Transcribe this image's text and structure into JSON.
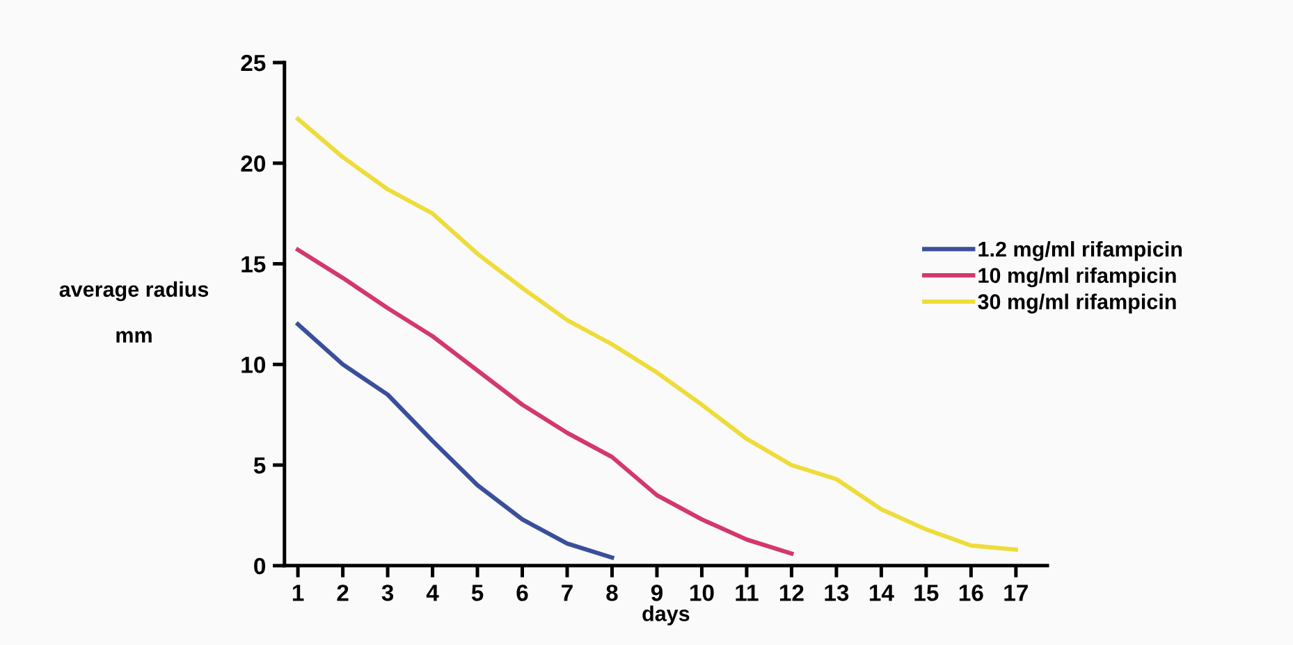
{
  "chart_data": {
    "type": "line",
    "xlabel": "days",
    "ylabel": "average radius\n\nmm",
    "categories": [
      "1",
      "2",
      "3",
      "4",
      "5",
      "6",
      "7",
      "8",
      "9",
      "10",
      "11",
      "12",
      "13",
      "14",
      "15",
      "16",
      "17"
    ],
    "ylim": [
      0,
      25
    ],
    "yticks": [
      0,
      5,
      10,
      15,
      20,
      25
    ],
    "grid": false,
    "legend": "right",
    "marker": "none",
    "line_style": "solid",
    "series": [
      {
        "name": "1.2 mg/ml rifampicin",
        "color": "#3a4f9a",
        "values": [
          12,
          10,
          8.5,
          6.2,
          4,
          2.3,
          1.1,
          0.4,
          null,
          null,
          null,
          null,
          null,
          null,
          null,
          null,
          null
        ]
      },
      {
        "name": "10 mg/ml rifampicin",
        "color": "#d4386b",
        "values": [
          15.7,
          14.3,
          12.8,
          11.4,
          9.7,
          8,
          6.6,
          5.4,
          3.5,
          2.3,
          1.3,
          0.6,
          null,
          null,
          null,
          null,
          null
        ]
      },
      {
        "name": "30 mg/ml rifampicin",
        "color": "#eedc3a",
        "values": [
          22.2,
          20.3,
          18.7,
          17.5,
          15.5,
          13.8,
          12.2,
          11,
          9.6,
          8,
          6.3,
          5,
          4.3,
          2.8,
          1.8,
          1,
          0.8
        ]
      }
    ]
  }
}
